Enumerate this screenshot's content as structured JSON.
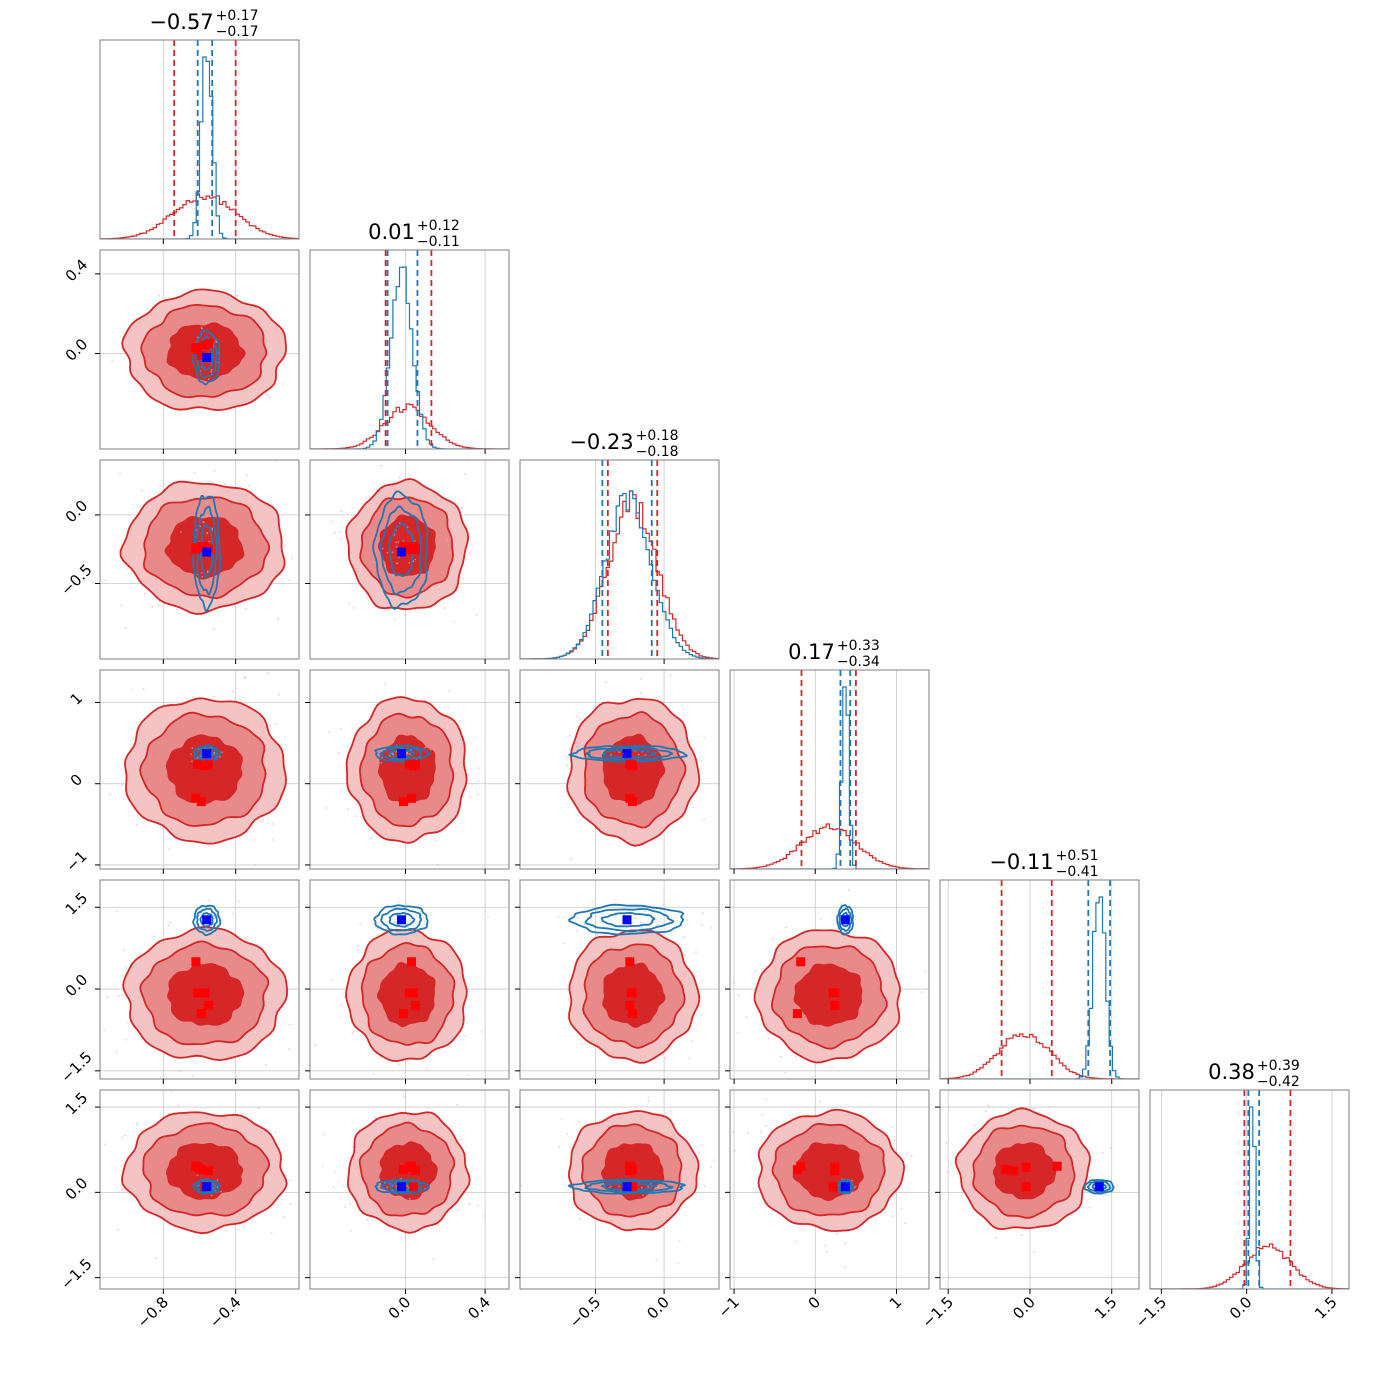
{
  "colors": {
    "red": "#d62728",
    "red_mid": "#e8898a",
    "red_light": "#f4c3c3",
    "red_scatter": "#f0a5b4",
    "blue": "#1f77b4",
    "blue_scatter": "#9ec9e6",
    "blue_marker": "#0000ff",
    "red_marker": "#ff0000",
    "grid": "#c8c8c8",
    "frame": "#7f7f7f"
  },
  "chart_data": {
    "type": "corner",
    "grid": true,
    "n_params": 6,
    "params": [
      {
        "range": [
          -1.15,
          -0.05
        ],
        "ticks": [
          {
            "v": -0.8,
            "label": "−0.8"
          },
          {
            "v": -0.4,
            "label": "−0.4"
          }
        ],
        "title": {
          "main": "−0.57",
          "plus": "+0.17",
          "minus": "−0.17"
        },
        "red": {
          "mean": -0.57,
          "sd": 0.17,
          "q": [
            -0.74,
            -0.4
          ]
        },
        "blue": {
          "mean": -0.56,
          "sd": 0.03,
          "q": [
            -0.61,
            -0.53
          ]
        }
      },
      {
        "range": [
          -0.48,
          0.52
        ],
        "ticks": [
          {
            "v": 0.0,
            "label": "0.0"
          },
          {
            "v": 0.4,
            "label": "0.4"
          }
        ],
        "title": {
          "main": "0.01",
          "plus": "+0.12",
          "minus": "−0.11"
        },
        "red": {
          "mean": 0.01,
          "sd": 0.115,
          "q": [
            -0.1,
            0.13
          ]
        },
        "blue": {
          "mean": -0.02,
          "sd": 0.055,
          "q": [
            -0.09,
            0.06
          ]
        }
      },
      {
        "range": [
          -1.05,
          0.4
        ],
        "ticks": [
          {
            "v": -0.5,
            "label": "−0.5"
          },
          {
            "v": 0.0,
            "label": "0.0"
          }
        ],
        "title": {
          "main": "−0.23",
          "plus": "+0.18",
          "minus": "−0.18"
        },
        "red": {
          "mean": -0.23,
          "sd": 0.18,
          "q": [
            -0.41,
            -0.05
          ]
        },
        "blue": {
          "mean": -0.26,
          "sd": 0.17,
          "q": [
            -0.45,
            -0.09
          ]
        }
      },
      {
        "range": [
          -1.05,
          1.4
        ],
        "ticks": [
          {
            "v": -1,
            "label": "−1"
          },
          {
            "v": 0,
            "label": "0"
          },
          {
            "v": 1,
            "label": "1"
          }
        ],
        "title": {
          "main": "0.17",
          "plus": "+0.33",
          "minus": "−0.34"
        },
        "red": {
          "mean": 0.17,
          "sd": 0.34,
          "q": [
            -0.17,
            0.5
          ]
        },
        "blue": {
          "mean": 0.37,
          "sd": 0.04,
          "q": [
            0.31,
            0.43
          ]
        }
      },
      {
        "range": [
          -1.65,
          2.0
        ],
        "ticks": [
          {
            "v": -1.5,
            "label": "−1.5"
          },
          {
            "v": 0.0,
            "label": "0.0"
          },
          {
            "v": 1.5,
            "label": "1.5"
          }
        ],
        "title": {
          "main": "−0.11",
          "plus": "+0.51",
          "minus": "−0.41"
        },
        "red": {
          "mean": -0.11,
          "sd": 0.46,
          "q": [
            -0.52,
            0.4
          ]
        },
        "blue": {
          "mean": 1.27,
          "sd": 0.11,
          "q": [
            1.07,
            1.47
          ]
        }
      },
      {
        "range": [
          -1.7,
          1.8
        ],
        "ticks": [
          {
            "v": -1.5,
            "label": "−1.5"
          },
          {
            "v": 0.0,
            "label": "0.0"
          },
          {
            "v": 1.5,
            "label": "1.5"
          }
        ],
        "title": {
          "main": "0.38",
          "plus": "+0.39",
          "minus": "−0.42"
        },
        "red": {
          "mean": 0.38,
          "sd": 0.4,
          "q": [
            -0.04,
            0.77
          ]
        },
        "blue": {
          "mean": 0.1,
          "sd": 0.05,
          "q": [
            0.03,
            0.22
          ]
        }
      }
    ],
    "blue_truth": [
      -0.56,
      -0.02,
      -0.27,
      0.37,
      1.27,
      0.1
    ],
    "red_markers": [
      [
        -0.57,
        0.04,
        -0.23,
        0.22,
        -0.07,
        0.1
      ],
      [
        -0.62,
        0.03,
        -0.25,
        -0.18,
        0.5,
        0.46
      ],
      [
        -0.55,
        0.05,
        -0.25,
        0.24,
        -0.3,
        0.38
      ],
      [
        -0.59,
        -0.01,
        -0.23,
        -0.22,
        -0.45,
        0.4
      ],
      [
        -0.61,
        0.02,
        -0.24,
        0.24,
        -0.07,
        0.44
      ]
    ]
  }
}
